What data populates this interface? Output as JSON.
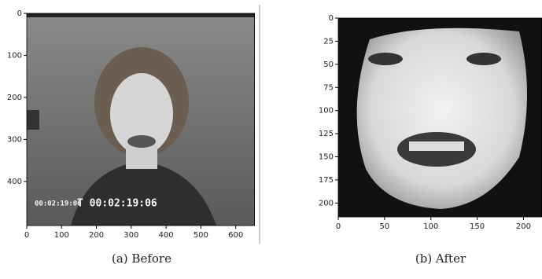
{
  "panels": [
    {
      "caption": "(a) Before",
      "xlim": [
        0,
        655
      ],
      "ylim": [
        0,
        505
      ],
      "xticks": [
        0,
        100,
        200,
        300,
        400,
        500,
        600
      ],
      "yticks": [
        0,
        100,
        200,
        300,
        400
      ],
      "overlay_text": [
        "00:02:19:06",
        "T 00:02:19:06"
      ]
    },
    {
      "caption": "(b) After",
      "xlim": [
        0,
        220
      ],
      "ylim": [
        0,
        215
      ],
      "xticks": [
        0,
        50,
        100,
        150,
        200
      ],
      "yticks": [
        0,
        25,
        50,
        75,
        100,
        125,
        150,
        175,
        200
      ]
    }
  ]
}
